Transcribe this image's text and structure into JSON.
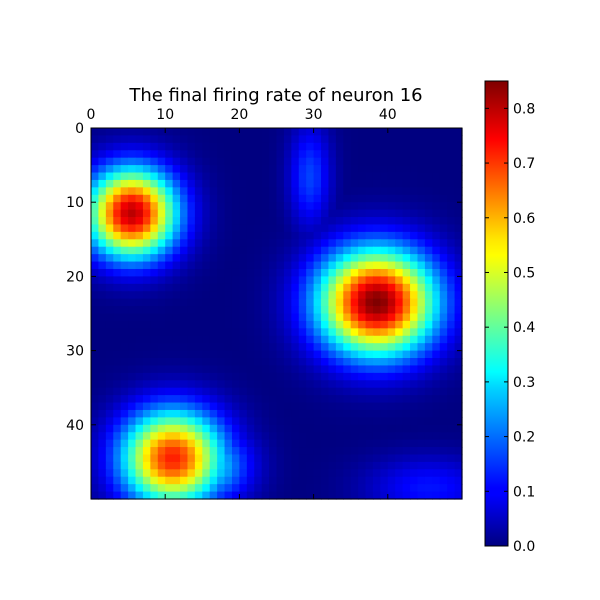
{
  "chart_data": {
    "type": "heatmap",
    "title": "The final firing rate of neuron 16",
    "xlabel": "",
    "ylabel": "",
    "grid_size": [
      50,
      50
    ],
    "x_ticks": [
      0,
      10,
      20,
      30,
      40
    ],
    "y_ticks": [
      0,
      10,
      20,
      30,
      40
    ],
    "xlim": [
      0,
      50
    ],
    "ylim": [
      50,
      0
    ],
    "x_axis_position": "top",
    "colormap": "jet",
    "colorbar": {
      "min": 0.0,
      "max": 0.85,
      "ticks": [
        "0.0",
        "0.1",
        "0.2",
        "0.3",
        "0.4",
        "0.5",
        "0.6",
        "0.7",
        "0.8"
      ],
      "position": "right"
    },
    "blobs": [
      {
        "center_x": 38,
        "center_y": 23,
        "peak": 0.85,
        "spread_x": 5.5,
        "spread_y": 5.0
      },
      {
        "center_x": 5,
        "center_y": 11,
        "peak": 0.8,
        "spread_x": 4.2,
        "spread_y": 4.2
      },
      {
        "center_x": 10.5,
        "center_y": 44,
        "peak": 0.72,
        "spread_x": 4.8,
        "spread_y": 4.5
      },
      {
        "center_x": 15,
        "center_y": 45,
        "peak": 0.32,
        "spread_x": 4.0,
        "spread_y": 3.5
      },
      {
        "center_x": 29,
        "center_y": 6,
        "peak": 0.16,
        "spread_x": 2.0,
        "spread_y": 5.0
      },
      {
        "center_x": 45,
        "center_y": 48,
        "peak": 0.12,
        "spread_x": 6.0,
        "spread_y": 3.0
      }
    ],
    "grid": false
  }
}
